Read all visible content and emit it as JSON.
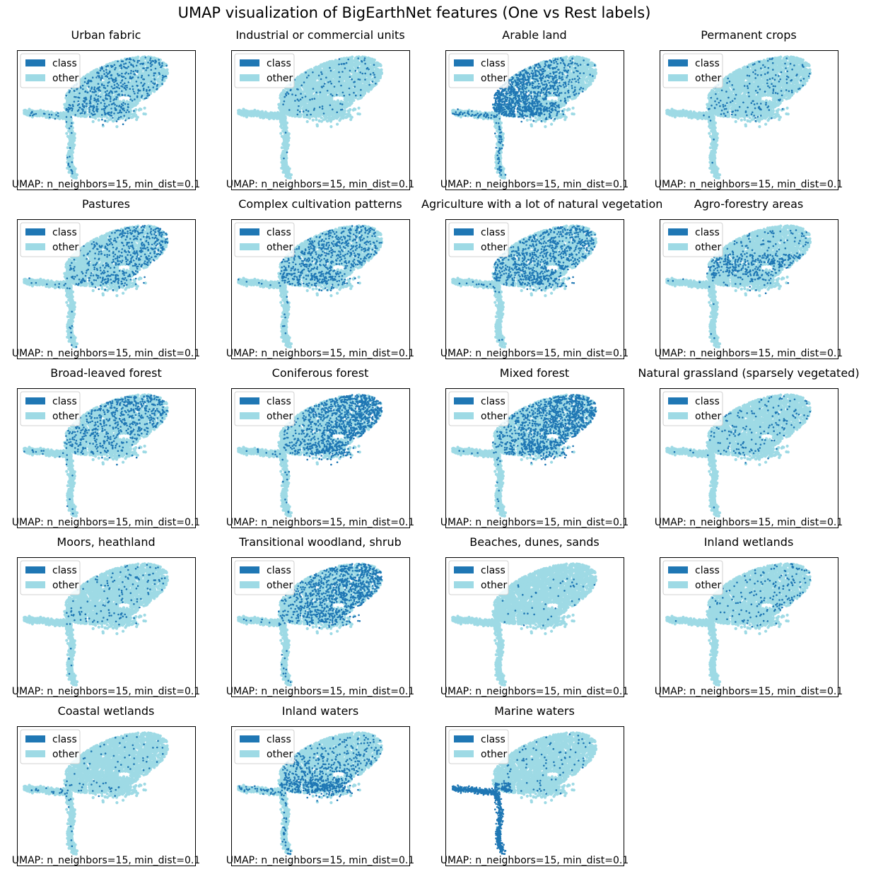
{
  "title": "UMAP visualization of BigEarthNet features (One vs Rest labels)",
  "colors": {
    "class": "#1f77b4",
    "other": "#9edae5"
  },
  "chart_data": {
    "type": "scatter",
    "subplot_grid": [
      5,
      4
    ],
    "axes_ticks": "none",
    "grid": false,
    "legend_position": "upper-left",
    "legend": [
      {
        "label": "class",
        "color": "#1f77b4"
      },
      {
        "label": "other",
        "color": "#9edae5"
      }
    ],
    "footer": "UMAP: n_neighbors=15, min_dist=0.1",
    "panels": [
      {
        "title": "Urban fabric",
        "density": 0.18,
        "focus": "center",
        "marine": 0.04
      },
      {
        "title": "Industrial or commercial units",
        "density": 0.04,
        "focus": "uniform",
        "marine": 0.01
      },
      {
        "title": "Arable land",
        "density": 0.55,
        "focus": "left",
        "marine": 0.15
      },
      {
        "title": "Permanent crops",
        "density": 0.06,
        "focus": "center",
        "marine": 0.01
      },
      {
        "title": "Pastures",
        "density": 0.22,
        "focus": "right",
        "marine": 0.03
      },
      {
        "title": "Complex cultivation patterns",
        "density": 0.25,
        "focus": "uniform",
        "marine": 0.03
      },
      {
        "title": "Agriculture with a lot of natural vegetation",
        "density": 0.28,
        "focus": "uniform",
        "marine": 0.03
      },
      {
        "title": "Agro-forestry areas",
        "density": 0.12,
        "focus": "band",
        "marine": 0.01
      },
      {
        "title": "Broad-leaved forest",
        "density": 0.26,
        "focus": "top",
        "marine": 0.03
      },
      {
        "title": "Coniferous forest",
        "density": 0.48,
        "focus": "right",
        "marine": 0.03
      },
      {
        "title": "Mixed forest",
        "density": 0.46,
        "focus": "right",
        "marine": 0.03
      },
      {
        "title": "Natural grassland (sparsely vegetated)",
        "density": 0.05,
        "focus": "uniform",
        "marine": 0.01
      },
      {
        "title": "Moors, heathland",
        "density": 0.05,
        "focus": "uniform",
        "marine": 0.01
      },
      {
        "title": "Transitional woodland, shrub",
        "density": 0.38,
        "focus": "right",
        "marine": 0.03
      },
      {
        "title": "Beaches, dunes, sands",
        "density": 0.01,
        "focus": "uniform",
        "marine": 0.0
      },
      {
        "title": "Inland wetlands",
        "density": 0.08,
        "focus": "right",
        "marine": 0.01
      },
      {
        "title": "Coastal wetlands",
        "density": 0.02,
        "focus": "uniform",
        "marine": 0.03
      },
      {
        "title": "Inland waters",
        "density": 0.3,
        "focus": "bottom",
        "marine": 0.08
      },
      {
        "title": "Marine waters",
        "density": 0.03,
        "focus": "uniform",
        "marine": 0.98
      }
    ]
  }
}
